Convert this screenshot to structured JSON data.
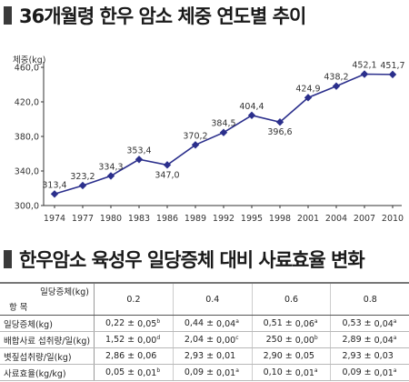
{
  "section1": {
    "title": "36개월령 한우 암소 체중 연도별 추이"
  },
  "section2": {
    "title": "한우암소 육성우 일당증체 대비 사료효율 변화"
  },
  "chart_data": {
    "type": "line",
    "ylabel": "체중(kg)",
    "x": [
      "1974",
      "1977",
      "1980",
      "1983",
      "1986",
      "1989",
      "1992",
      "1995",
      "1998",
      "2001",
      "2004",
      "2007",
      "2010"
    ],
    "values": [
      313.4,
      323.2,
      334.3,
      353.4,
      347.0,
      370.2,
      384.5,
      404.4,
      396.6,
      424.9,
      438.2,
      452.1,
      451.7
    ],
    "value_labels": [
      "313,4",
      "323,2",
      "334,3",
      "353,4",
      "347,0",
      "370,2",
      "384,5",
      "404,4",
      "396,6",
      "424,9",
      "438,2",
      "452,1",
      "451,7"
    ],
    "yticks": [
      "300,0",
      "340,0",
      "380,0",
      "420,0",
      "460,0"
    ],
    "ylim": [
      300,
      460
    ],
    "grid": false,
    "colors": {
      "line": "#2b2f8c",
      "marker": "#2b2f8c"
    }
  },
  "table": {
    "corner_top": "일당증체(kg)",
    "corner_bottom": "항 목",
    "groups": [
      "0.2",
      "0.4",
      "0.6",
      "0.8"
    ],
    "pm": "±",
    "rows": [
      {
        "label": "일당증체(kg)",
        "cells": [
          {
            "v": "0,22",
            "sd": "0,05",
            "sup": "b"
          },
          {
            "v": "0,44",
            "sd": "0,04",
            "sup": "a"
          },
          {
            "v": "0,51",
            "sd": "0,06",
            "sup": "a"
          },
          {
            "v": "0,53",
            "sd": "0,04",
            "sup": "a"
          }
        ]
      },
      {
        "label": "배합사료 섭취량/일(kg)",
        "cells": [
          {
            "v": "1,52",
            "sd": "0,00",
            "sup": "d"
          },
          {
            "v": "2,04",
            "sd": "0,00",
            "sup": "c"
          },
          {
            "v": "250",
            "sd": "0,00",
            "sup": "b"
          },
          {
            "v": "2,89",
            "sd": "0,04",
            "sup": "a"
          }
        ]
      },
      {
        "label": "볏짚섭취량/일(kg)",
        "cells": [
          {
            "v": "2,86",
            "sd": "0,06",
            "sup": ""
          },
          {
            "v": "2,93",
            "sd": "0,01",
            "sup": ""
          },
          {
            "v": "2,90",
            "sd": "0,05",
            "sup": ""
          },
          {
            "v": "2,93",
            "sd": "0,03",
            "sup": ""
          }
        ]
      },
      {
        "label": "사료효율(kg/kg)",
        "cells": [
          {
            "v": "0,05",
            "sd": "0,01",
            "sup": "b"
          },
          {
            "v": "0,09",
            "sd": "0,01",
            "sup": "a"
          },
          {
            "v": "0,10",
            "sd": "0,01",
            "sup": "a"
          },
          {
            "v": "0,09",
            "sd": "0,01",
            "sup": "a"
          }
        ]
      }
    ]
  }
}
